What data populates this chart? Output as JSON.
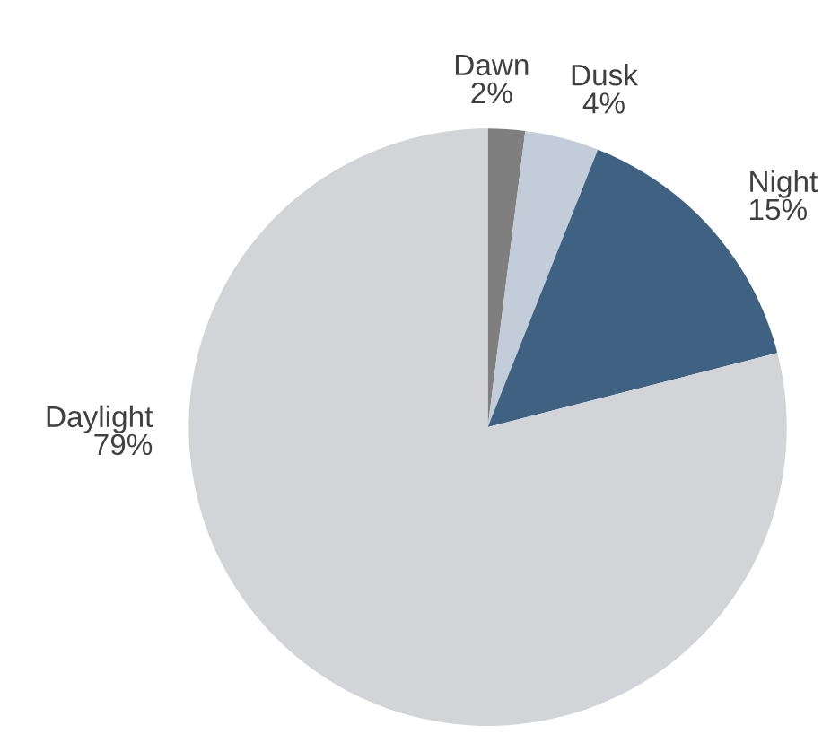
{
  "chart_data": {
    "type": "pie",
    "categories": [
      "Dawn",
      "Dusk",
      "Night",
      "Daylight"
    ],
    "values": [
      2,
      4,
      15,
      79
    ],
    "colors": [
      "#7f7f7f",
      "#c3cdd9",
      "#3f6182",
      "#d3d4d8"
    ],
    "value_labels": [
      "2%",
      "4%",
      "15%",
      "79%"
    ]
  }
}
